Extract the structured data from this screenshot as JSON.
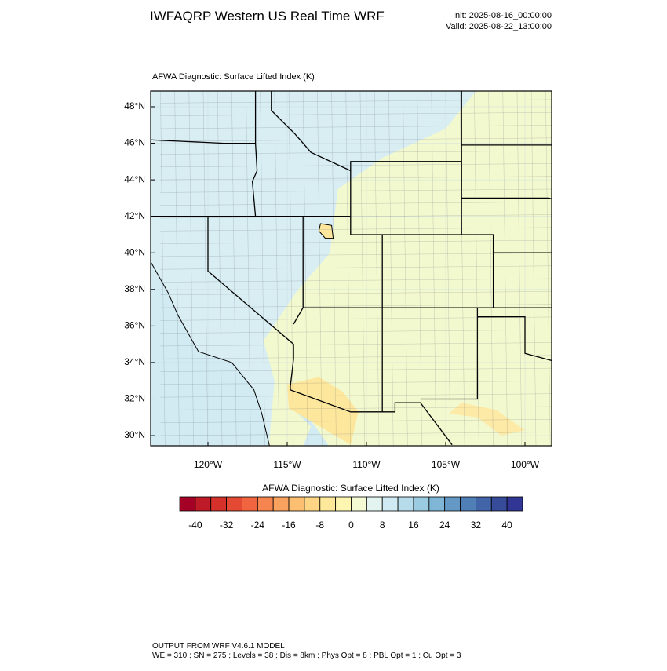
{
  "header": {
    "title": "IWFAQRP Western US Real Time WRF",
    "init": "Init: 2025-08-16_00:00:00",
    "valid": "Valid: 2025-08-22_13:00:00"
  },
  "map": {
    "title": "AFWA Diagnostic: Surface Lifted Index   (K)",
    "lat_ticks": [
      {
        "value": 48,
        "label": "48°N"
      },
      {
        "value": 46,
        "label": "46°N"
      },
      {
        "value": 44,
        "label": "44°N"
      },
      {
        "value": 42,
        "label": "42°N"
      },
      {
        "value": 40,
        "label": "40°N"
      },
      {
        "value": 38,
        "label": "38°N"
      },
      {
        "value": 36,
        "label": "36°N"
      },
      {
        "value": 34,
        "label": "34°N"
      },
      {
        "value": 32,
        "label": "32°N"
      },
      {
        "value": 30,
        "label": "30°N"
      }
    ],
    "lon_ticks": [
      {
        "value": -120,
        "label": "120°W"
      },
      {
        "value": -115,
        "label": "115°W"
      },
      {
        "value": -110,
        "label": "110°W"
      },
      {
        "value": -105,
        "label": "105°W"
      },
      {
        "value": -100,
        "label": "100°W"
      }
    ]
  },
  "colorbar": {
    "title": "AFWA Diagnostic: Surface Lifted Index  (K)",
    "ticks": [
      -40,
      -32,
      -24,
      -16,
      -8,
      0,
      8,
      16,
      24,
      32,
      40
    ],
    "colors": [
      "#a50026",
      "#bf1a27",
      "#d6302a",
      "#e34933",
      "#f0643f",
      "#f5844f",
      "#f9a25f",
      "#fcbe71",
      "#fdd585",
      "#fee899",
      "#fdf6b1",
      "#f4fad2",
      "#e3f3ef",
      "#cfeaf2",
      "#b6dceb",
      "#9acbe1",
      "#7fb6d6",
      "#6599c5",
      "#507fb6",
      "#4264a8",
      "#364c9b",
      "#313695"
    ]
  },
  "footer": {
    "line1": "OUTPUT FROM WRF V4.6.1 MODEL",
    "line2": "WE = 310 ; SN = 275 ; Levels = 38 ; Dis = 8km ; Phys Opt = 8 ; PBL Opt = 1 ; Cu Opt = 3"
  }
}
